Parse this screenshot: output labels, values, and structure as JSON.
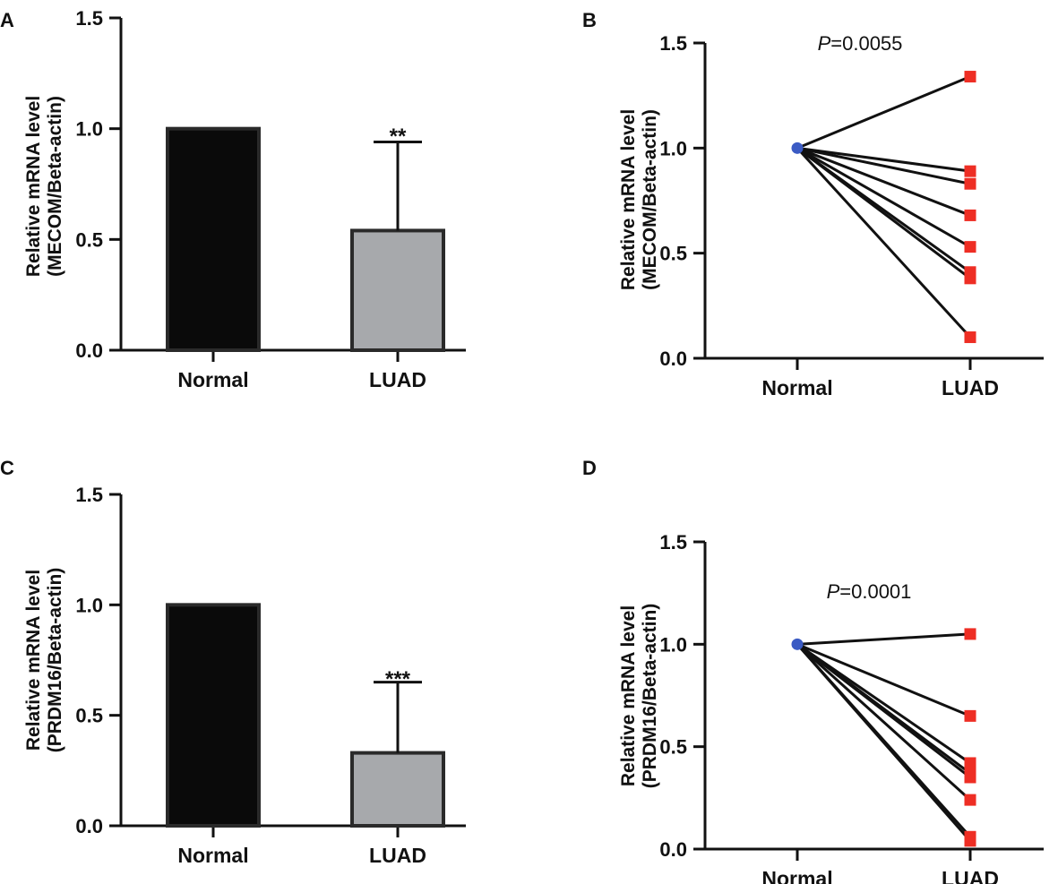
{
  "chart_data": [
    {
      "panel": "A",
      "type": "bar",
      "categories": [
        "Normal",
        "LUAD"
      ],
      "values": [
        1.0,
        0.54
      ],
      "error_upper": [
        null,
        0.94
      ],
      "significance": "**",
      "ylabel_line1": "Relative mRNA level",
      "ylabel_line2": "(MECOM/Beta-actin)",
      "ylim": [
        0,
        1.5
      ],
      "yticks": [
        "0.0",
        "0.5",
        "1.0",
        "1.5"
      ],
      "colors": [
        "#0a0a0a",
        "#a7a9ac"
      ]
    },
    {
      "panel": "B",
      "type": "line",
      "categories": [
        "Normal",
        "LUAD"
      ],
      "pvalue_prefix": "P",
      "pvalue_rest": "=0.0055",
      "ylabel_line1": "Relative mRNA level",
      "ylabel_line2": "(MECOM/Beta-actin)",
      "ylim": [
        0,
        1.5
      ],
      "yticks": [
        "0.0",
        "0.5",
        "1.0",
        "1.5"
      ],
      "normal_value": 1.0,
      "luad_values": [
        1.34,
        0.89,
        0.83,
        0.68,
        0.53,
        0.41,
        0.38,
        0.1
      ],
      "normal_color": "#3b5bc4",
      "luad_color": "#ee2e24"
    },
    {
      "panel": "C",
      "type": "bar",
      "categories": [
        "Normal",
        "LUAD"
      ],
      "values": [
        1.0,
        0.33
      ],
      "error_upper": [
        null,
        0.65
      ],
      "significance": "***",
      "ylabel_line1": "Relative mRNA level",
      "ylabel_line2": "(PRDM16/Beta-actin)",
      "ylim": [
        0,
        1.5
      ],
      "yticks": [
        "0.0",
        "0.5",
        "1.0",
        "1.5"
      ],
      "colors": [
        "#0a0a0a",
        "#a7a9ac"
      ]
    },
    {
      "panel": "D",
      "type": "line",
      "categories": [
        "Normal",
        "LUAD"
      ],
      "pvalue_prefix": "P",
      "pvalue_rest": "=0.0001",
      "ylabel_line1": "Relative mRNA level",
      "ylabel_line2": "(PRDM16/Beta-actin)",
      "ylim": [
        0,
        1.5
      ],
      "yticks": [
        "0.0",
        "0.5",
        "1.0",
        "1.5"
      ],
      "normal_value": 1.0,
      "luad_values": [
        1.05,
        0.65,
        0.42,
        0.37,
        0.35,
        0.24,
        0.06,
        0.04
      ],
      "normal_color": "#3b5bc4",
      "luad_color": "#ee2e24"
    }
  ]
}
